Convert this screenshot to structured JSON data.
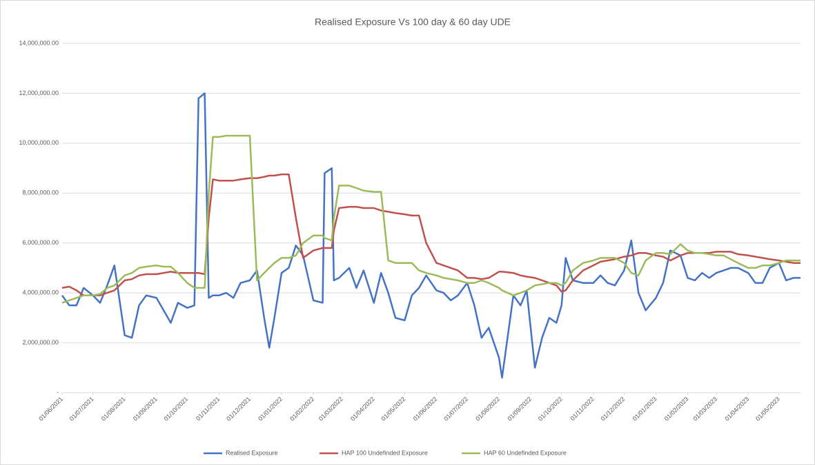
{
  "chart_data": {
    "type": "line",
    "title": "Realised Exposure Vs 100 day & 60 day UDE",
    "x": [
      "01/06/2021",
      "08/06/2021",
      "15/06/2021",
      "22/06/2021",
      "01/07/2021",
      "08/07/2021",
      "15/07/2021",
      "22/07/2021",
      "01/08/2021",
      "08/08/2021",
      "15/08/2021",
      "22/08/2021",
      "01/09/2021",
      "08/09/2021",
      "15/09/2021",
      "22/09/2021",
      "01/10/2021",
      "08/10/2021",
      "12/10/2021",
      "18/10/2021",
      "22/10/2021",
      "26/10/2021",
      "01/11/2021",
      "08/11/2021",
      "15/11/2021",
      "22/11/2021",
      "01/12/2021",
      "08/12/2021",
      "15/12/2021",
      "20/12/2021",
      "25/12/2021",
      "01/01/2022",
      "08/01/2022",
      "15/01/2022",
      "22/01/2022",
      "01/02/2022",
      "10/02/2022",
      "12/02/2022",
      "19/02/2022",
      "21/02/2022",
      "26/02/2022",
      "08/03/2022",
      "15/03/2022",
      "22/03/2022",
      "01/04/2022",
      "08/04/2022",
      "15/04/2022",
      "22/04/2022",
      "01/05/2022",
      "08/05/2022",
      "15/05/2022",
      "22/05/2022",
      "01/06/2022",
      "08/06/2022",
      "15/06/2022",
      "22/06/2022",
      "01/07/2022",
      "08/07/2022",
      "15/07/2022",
      "22/07/2022",
      "01/08/2022",
      "04/08/2022",
      "15/08/2022",
      "22/08/2022",
      "28/08/2022",
      "05/09/2022",
      "12/09/2022",
      "19/09/2022",
      "26/09/2022",
      "01/10/2022",
      "05/10/2022",
      "12/10/2022",
      "22/10/2022",
      "01/11/2022",
      "08/11/2022",
      "15/11/2022",
      "22/11/2022",
      "01/12/2022",
      "08/12/2022",
      "15/12/2022",
      "22/12/2022",
      "01/01/2023",
      "08/01/2023",
      "15/01/2023",
      "25/01/2023",
      "01/02/2023",
      "08/02/2023",
      "15/02/2023",
      "22/02/2023",
      "01/03/2023",
      "08/03/2023",
      "15/03/2023",
      "22/03/2023",
      "01/04/2023",
      "08/04/2023",
      "15/04/2023",
      "22/04/2023",
      "01/05/2023",
      "08/05/2023",
      "15/05/2023",
      "22/05/2023"
    ],
    "series": [
      {
        "name": "Realised Exposure",
        "color": "#4472c4",
        "values": [
          3900000,
          3500000,
          3500000,
          4200000,
          3900000,
          3600000,
          4300000,
          5100000,
          2300000,
          2200000,
          3500000,
          3900000,
          3800000,
          3300000,
          2800000,
          3600000,
          3400000,
          3500000,
          11800000,
          12000000,
          3800000,
          3900000,
          3900000,
          4000000,
          3800000,
          4400000,
          4500000,
          4900000,
          3000000,
          1800000,
          3000000,
          4800000,
          5000000,
          5900000,
          5500000,
          3700000,
          3600000,
          8800000,
          9000000,
          4500000,
          4600000,
          5000000,
          4200000,
          4900000,
          3600000,
          4800000,
          4000000,
          3000000,
          2900000,
          3900000,
          4200000,
          4700000,
          4100000,
          4000000,
          3700000,
          3900000,
          4400000,
          3500000,
          2200000,
          2600000,
          1400000,
          600000,
          3900000,
          3500000,
          4100000,
          1000000,
          2200000,
          3000000,
          2800000,
          3500000,
          5400000,
          4500000,
          4400000,
          4400000,
          4700000,
          4400000,
          4300000,
          4900000,
          6100000,
          4000000,
          3300000,
          3800000,
          4400000,
          5700000,
          5500000,
          4600000,
          4500000,
          4800000,
          4600000,
          4800000,
          4900000,
          5000000,
          5000000,
          4800000,
          4400000,
          4400000,
          5000000,
          5200000,
          4500000,
          4600000,
          4600000
        ]
      },
      {
        "name": "HAP 100 Undefinded Exposure",
        "color": "#c0504d",
        "values": [
          4200000,
          4250000,
          4100000,
          3900000,
          3900000,
          3900000,
          4000000,
          4100000,
          4500000,
          4550000,
          4700000,
          4750000,
          4750000,
          4800000,
          4850000,
          4800000,
          4800000,
          4800000,
          4800000,
          4750000,
          7000000,
          8550000,
          8500000,
          8500000,
          8500000,
          8550000,
          8600000,
          8600000,
          8650000,
          8700000,
          8700000,
          8750000,
          8750000,
          7000000,
          5400000,
          5700000,
          5800000,
          5800000,
          5800000,
          6500000,
          7400000,
          7450000,
          7450000,
          7400000,
          7400000,
          7300000,
          7250000,
          7200000,
          7150000,
          7100000,
          7100000,
          6000000,
          5200000,
          5100000,
          5000000,
          4900000,
          4600000,
          4600000,
          4550000,
          4600000,
          4850000,
          4850000,
          4800000,
          4700000,
          4650000,
          4600000,
          4500000,
          4400000,
          4300000,
          4050000,
          4100000,
          4500000,
          4900000,
          5100000,
          5250000,
          5300000,
          5350000,
          5450000,
          5500000,
          5600000,
          5600000,
          5500000,
          5450000,
          5300000,
          5500000,
          5600000,
          5600000,
          5600000,
          5600000,
          5650000,
          5650000,
          5650000,
          5550000,
          5500000,
          5450000,
          5400000,
          5350000,
          5300000,
          5250000,
          5200000,
          5200000
        ]
      },
      {
        "name": "HAP 60 Undefinded Exposure",
        "color": "#9bbb59",
        "values": [
          3600000,
          3700000,
          3800000,
          3900000,
          3900000,
          3950000,
          4200000,
          4300000,
          4700000,
          4800000,
          5000000,
          5050000,
          5100000,
          5050000,
          5050000,
          4800000,
          4400000,
          4200000,
          4200000,
          4200000,
          8000000,
          10250000,
          10250000,
          10300000,
          10300000,
          10300000,
          10300000,
          4500000,
          4800000,
          5000000,
          5200000,
          5400000,
          5400000,
          5500000,
          6000000,
          6300000,
          6300000,
          6200000,
          6100000,
          7000000,
          8300000,
          8300000,
          8200000,
          8100000,
          8050000,
          8050000,
          5300000,
          5200000,
          5200000,
          5200000,
          4900000,
          4800000,
          4700000,
          4600000,
          4550000,
          4500000,
          4400000,
          4400000,
          4500000,
          4400000,
          4200000,
          4100000,
          3900000,
          4000000,
          4100000,
          4300000,
          4350000,
          4400000,
          4400000,
          4300000,
          4400000,
          4900000,
          5200000,
          5300000,
          5400000,
          5400000,
          5400000,
          5200000,
          4800000,
          4700000,
          5300000,
          5600000,
          5600000,
          5550000,
          5950000,
          5700000,
          5600000,
          5600000,
          5550000,
          5500000,
          5500000,
          5350000,
          5200000,
          5000000,
          5000000,
          5100000,
          5100000,
          5200000,
          5300000,
          5300000,
          5300000
        ]
      }
    ],
    "xlim": [
      "01/06/2021",
      "22/05/2023"
    ],
    "xticks": [
      "01/06/2021",
      "01/07/2021",
      "01/08/2021",
      "01/09/2021",
      "01/10/2021",
      "01/11/2021",
      "01/12/2021",
      "01/01/2022",
      "01/02/2022",
      "01/03/2022",
      "01/04/2022",
      "01/05/2022",
      "01/06/2022",
      "01/07/2022",
      "01/08/2022",
      "01/09/2022",
      "01/10/2022",
      "01/11/2022",
      "01/12/2022",
      "01/01/2023",
      "01/02/2023",
      "01/03/2023",
      "01/04/2023",
      "01/05/2023"
    ],
    "ylim": [
      0,
      14000000
    ],
    "yticks": [
      {
        "value": 0,
        "label": "-"
      },
      {
        "value": 2000000,
        "label": "2,000,000.00"
      },
      {
        "value": 4000000,
        "label": "4,000,000.00"
      },
      {
        "value": 6000000,
        "label": "6,000,000.00"
      },
      {
        "value": 8000000,
        "label": "8,000,000.00"
      },
      {
        "value": 10000000,
        "label": "10,000,000.00"
      },
      {
        "value": 12000000,
        "label": "12,000,000.00"
      },
      {
        "value": 14000000,
        "label": "14,000,000.00"
      }
    ],
    "grid": true,
    "legend": "bottom"
  }
}
